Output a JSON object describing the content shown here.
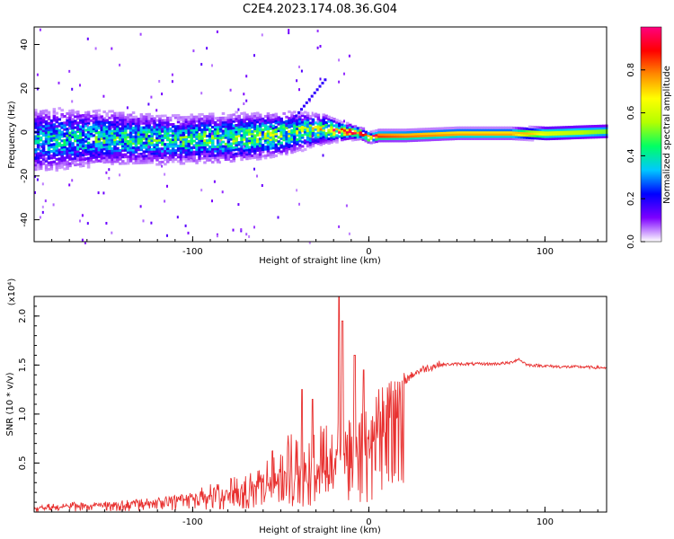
{
  "figure_title": "C2E4.2023.174.08.36.G04",
  "chart_data": [
    {
      "type": "heatmap",
      "title": "C2E4.2023.174.08.36.G04",
      "xlabel": "Height of straight line (km)",
      "ylabel": "Frequency (Hz)",
      "xlim": [
        -190,
        135
      ],
      "ylim": [
        -50,
        48
      ],
      "xticks": [
        -100,
        0,
        100
      ],
      "yticks": [
        -40,
        -20,
        0,
        20,
        40
      ],
      "grid": false,
      "colorbar": {
        "label": "Normalized spectral amplitude",
        "range": [
          0.0,
          1.0
        ],
        "ticks": [
          0.0,
          0.2,
          0.4,
          0.6,
          0.8
        ],
        "colormap": "rainbow",
        "stops": [
          "#ffffff",
          "#7d00ff",
          "#0000ff",
          "#00c8ff",
          "#00ff64",
          "#b4ff00",
          "#ffff00",
          "#ff8c00",
          "#ff0000",
          "#ff007f"
        ]
      },
      "ridge": {
        "x": [
          -190,
          -150,
          -110,
          -80,
          -55,
          -40,
          -25,
          -15,
          -5,
          0,
          5,
          20,
          50,
          80,
          100,
          135
        ],
        "freq": [
          -4,
          -3,
          -4,
          -3,
          -2,
          0,
          1,
          0,
          -1,
          -3,
          -2,
          -2,
          -1,
          -1,
          -1,
          0
        ],
        "amplitude": [
          0.35,
          0.4,
          0.4,
          0.45,
          0.5,
          0.5,
          0.6,
          0.85,
          0.85,
          0.75,
          0.9,
          0.85,
          0.8,
          0.8,
          0.65,
          0.55
        ],
        "spread_hz": [
          12,
          10,
          9,
          9,
          8,
          7,
          5,
          3,
          2,
          2,
          2,
          2,
          2,
          2,
          2.5,
          2.5
        ]
      }
    },
    {
      "type": "line",
      "xlabel": "Height of straight line (km)",
      "ylabel": "SNR (10 * v/v)",
      "yscale_label": "(x10⁴)",
      "xlim": [
        -190,
        135
      ],
      "ylim": [
        0,
        2.2
      ],
      "xticks": [
        -100,
        0,
        100
      ],
      "yticks": [
        0.5,
        1.0,
        1.5,
        2.0
      ],
      "ytick_labels": [
        "0.5",
        "1.0",
        "1.5",
        "2.0"
      ],
      "grid": false,
      "series_color": "#e8302f",
      "x": [
        -190,
        -170,
        -150,
        -130,
        -110,
        -90,
        -75,
        -60,
        -50,
        -40,
        -30,
        -20,
        -15,
        -10,
        -5,
        0,
        5,
        10,
        15,
        20,
        25,
        30,
        40,
        50,
        60,
        70,
        80,
        85,
        90,
        100,
        110,
        120,
        135
      ],
      "y": [
        0.05,
        0.07,
        0.08,
        0.1,
        0.14,
        0.2,
        0.27,
        0.35,
        0.42,
        0.5,
        0.55,
        0.6,
        0.65,
        0.7,
        0.75,
        0.85,
        1.0,
        1.15,
        1.25,
        1.33,
        1.4,
        1.45,
        1.5,
        1.51,
        1.51,
        1.51,
        1.52,
        1.56,
        1.5,
        1.49,
        1.48,
        1.48,
        1.47
      ],
      "peaks": [
        {
          "x": -38,
          "y": 1.25
        },
        {
          "x": -32,
          "y": 1.15
        },
        {
          "x": -17,
          "y": 2.2
        },
        {
          "x": -15,
          "y": 1.95
        },
        {
          "x": -8,
          "y": 1.6
        },
        {
          "x": -3,
          "y": 1.45
        }
      ]
    }
  ]
}
